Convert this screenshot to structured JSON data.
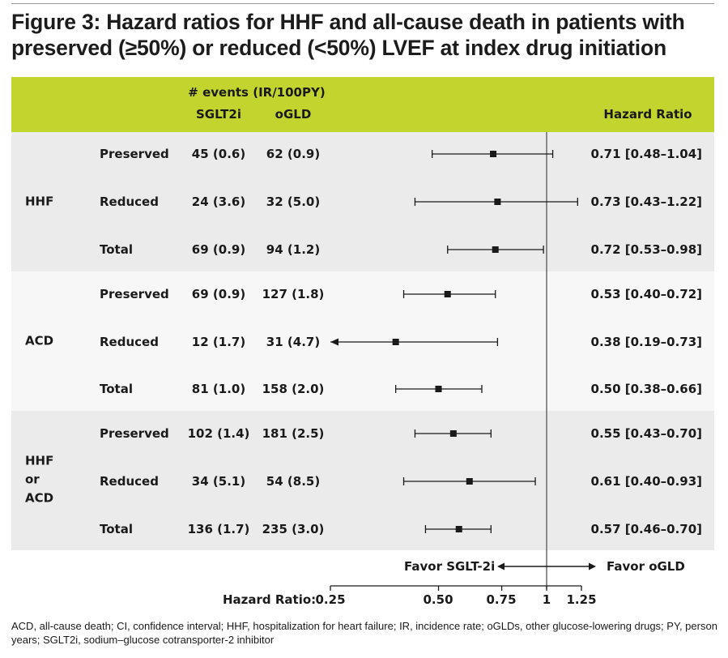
{
  "figure": {
    "title": "Figure 3: Hazard ratios for HHF and all-cause death in patients with preserved (≥50%) or reduced (<50%) LVEF at index drug initiation",
    "footnote": "ACD, all-cause death; CI, confidence interval; HHF, hospitalization for heart failure; IR, incidence rate; oGLDs, other glucose-lowering drugs; PY, person years; SGLT2i, sodium–glucose cotransporter-2 inhibitor"
  },
  "header": {
    "events_label": "# events (IR/100PY)",
    "col_sglt2i": "SGLT2i",
    "col_ogld": "oGLD",
    "col_hr": "Hazard Ratio"
  },
  "groups": [
    {
      "label_lines": [
        "HHF"
      ]
    },
    {
      "label_lines": [
        "ACD"
      ]
    },
    {
      "label_lines": [
        "HHF",
        "or",
        "ACD"
      ]
    }
  ],
  "colors": {
    "header_band": "#c2d52f",
    "band_dark": "#ebebeb",
    "band_light": "#f7f7f7"
  },
  "chart_data": {
    "type": "forest",
    "x_scale": "log",
    "xlim": [
      0.25,
      1.25
    ],
    "reference_line": 1,
    "axis_label": "Hazard Ratio:",
    "ticks": [
      "0.25",
      "0.50",
      "0.75",
      "1",
      "1.25"
    ],
    "tick_values": [
      0.25,
      0.5,
      0.75,
      1,
      1.25
    ],
    "favor_left": "Favor SGLT-2i",
    "favor_right": "Favor oGLD",
    "rows": [
      {
        "group": "HHF",
        "subgroup": "Preserved",
        "sglt2i": "45 (0.6)",
        "ogld": "62 (0.9)",
        "hr": 0.71,
        "lo": 0.48,
        "hi": 1.04,
        "hr_text": "0.71 [0.48–1.04]"
      },
      {
        "group": "HHF",
        "subgroup": "Reduced",
        "sglt2i": "24 (3.6)",
        "ogld": "32 (5.0)",
        "hr": 0.73,
        "lo": 0.43,
        "hi": 1.22,
        "hr_text": "0.73 [0.43–1.22]"
      },
      {
        "group": "HHF",
        "subgroup": "Total",
        "sglt2i": "69 (0.9)",
        "ogld": "94 (1.2)",
        "hr": 0.72,
        "lo": 0.53,
        "hi": 0.98,
        "hr_text": "0.72 [0.53–0.98]"
      },
      {
        "group": "ACD",
        "subgroup": "Preserved",
        "sglt2i": "69 (0.9)",
        "ogld": "127 (1.8)",
        "hr": 0.53,
        "lo": 0.4,
        "hi": 0.72,
        "hr_text": "0.53 [0.40–0.72]"
      },
      {
        "group": "ACD",
        "subgroup": "Reduced",
        "sglt2i": "12 (1.7)",
        "ogld": "31 (4.7)",
        "hr": 0.38,
        "lo": 0.19,
        "hi": 0.73,
        "hr_text": "0.38 [0.19–0.73]",
        "arrow_left": true
      },
      {
        "group": "ACD",
        "subgroup": "Total",
        "sglt2i": "81 (1.0)",
        "ogld": "158 (2.0)",
        "hr": 0.5,
        "lo": 0.38,
        "hi": 0.66,
        "hr_text": "0.50 [0.38–0.66]"
      },
      {
        "group": "HHF or ACD",
        "subgroup": "Preserved",
        "sglt2i": "102 (1.4)",
        "ogld": "181 (2.5)",
        "hr": 0.55,
        "lo": 0.43,
        "hi": 0.7,
        "hr_text": "0.55 [0.43–0.70]"
      },
      {
        "group": "HHF or ACD",
        "subgroup": "Reduced",
        "sglt2i": "34 (5.1)",
        "ogld": "54 (8.5)",
        "hr": 0.61,
        "lo": 0.4,
        "hi": 0.93,
        "hr_text": "0.61 [0.40–0.93]"
      },
      {
        "group": "HHF or ACD",
        "subgroup": "Total",
        "sglt2i": "136 (1.7)",
        "ogld": "235 (3.0)",
        "hr": 0.57,
        "lo": 0.46,
        "hi": 0.7,
        "hr_text": "0.57 [0.46–0.70]"
      }
    ]
  }
}
